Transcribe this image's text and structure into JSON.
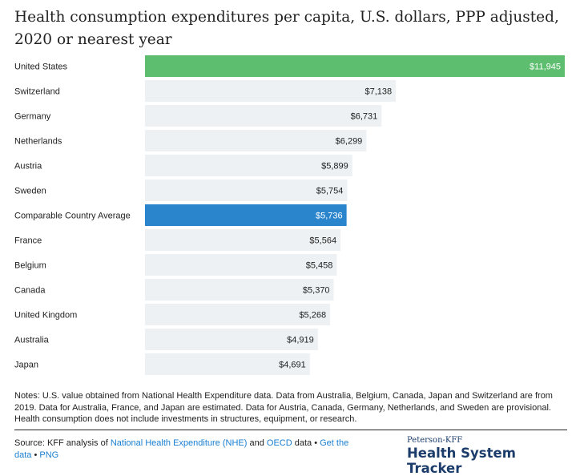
{
  "title": "Health consumption expenditures per capita, U.S. dollars, PPP adjusted, 2020 or nearest year",
  "chart_data": {
    "type": "bar",
    "orientation": "horizontal",
    "title": "Health consumption expenditures per capita, U.S. dollars, PPP adjusted, 2020 or nearest year",
    "categories": [
      "United States",
      "Switzerland",
      "Germany",
      "Netherlands",
      "Austria",
      "Sweden",
      "Comparable Country Average",
      "France",
      "Belgium",
      "Canada",
      "United Kingdom",
      "Australia",
      "Japan"
    ],
    "values": [
      11945,
      7138,
      6731,
      6299,
      5899,
      5754,
      5736,
      5564,
      5458,
      5370,
      5268,
      4919,
      4691
    ],
    "value_labels": [
      "$11,945",
      "$7,138",
      "$6,731",
      "$6,299",
      "$5,899",
      "$5,754",
      "$5,736",
      "$5,564",
      "$5,458",
      "$5,370",
      "$5,268",
      "$4,919",
      "$4,691"
    ],
    "highlight": {
      "United States": "#5cbe6e",
      "Comparable Country Average": "#2b85cc"
    },
    "default_bar_color": "#edf1f4",
    "xlim": [
      0,
      11945
    ],
    "grid": false
  },
  "notes": "Notes: U.S. value obtained from National Health Expenditure data. Data from Australia, Belgium, Canada, Japan and Switzerland are from 2019. Data for Australia, France, and Japan are estimated. Data for Austria, Canada, Germany, Netherlands, and Sweden are provisional. Health consumption does not include investments in structures, equipment, or research.",
  "source": {
    "prefix": "Source: KFF analysis of ",
    "link1": "National Health Expenditure (NHE)",
    "mid1": " and ",
    "link2": "OECD",
    "mid2": " data • ",
    "link3": "Get the data",
    "mid3": " • ",
    "link4": "PNG"
  },
  "logo": {
    "small": "Peterson-KFF",
    "big": "Health System Tracker"
  }
}
